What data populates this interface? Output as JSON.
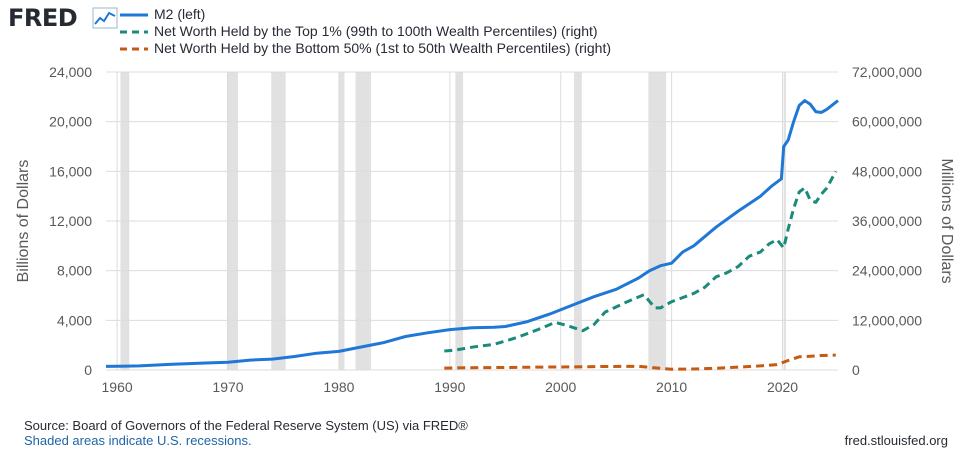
{
  "logo": {
    "text": "FRED",
    "icon": "chart-line-icon"
  },
  "chart_data": {
    "type": "line",
    "xlim": [
      1959,
      2025
    ],
    "x_ticks": [
      "1960",
      "1970",
      "1980",
      "1990",
      "2000",
      "2010",
      "2020"
    ],
    "left_axis": {
      "label": "Billions of Dollars",
      "ylim": [
        0,
        24000
      ],
      "ticks": [
        "0",
        "4,000",
        "8,000",
        "12,000",
        "16,000",
        "20,000",
        "24,000"
      ]
    },
    "right_axis": {
      "label": "Millions of Dollars",
      "ylim": [
        0,
        72000000
      ],
      "ticks": [
        "0",
        "12,000,000",
        "24,000,000",
        "36,000,000",
        "48,000,000",
        "60,000,000",
        "72,000,000"
      ]
    },
    "grid": true,
    "legend_position": "top-left",
    "recessions": [
      [
        1960.3,
        1961.1
      ],
      [
        1969.9,
        1970.9
      ],
      [
        1973.9,
        1975.2
      ],
      [
        1980.0,
        1980.5
      ],
      [
        1981.5,
        1982.9
      ],
      [
        1990.5,
        1991.2
      ],
      [
        2001.2,
        2001.9
      ],
      [
        2007.9,
        2009.5
      ],
      [
        2020.1,
        2020.3
      ]
    ],
    "series": [
      {
        "name": "M2 (left)",
        "axis": "left",
        "color": "#1f77d6",
        "style": "solid",
        "points": [
          [
            1959,
            290
          ],
          [
            1962,
            330
          ],
          [
            1965,
            460
          ],
          [
            1968,
            560
          ],
          [
            1970,
            630
          ],
          [
            1972,
            800
          ],
          [
            1974,
            880
          ],
          [
            1976,
            1090
          ],
          [
            1978,
            1350
          ],
          [
            1980,
            1500
          ],
          [
            1982,
            1850
          ],
          [
            1984,
            2200
          ],
          [
            1986,
            2700
          ],
          [
            1988,
            3000
          ],
          [
            1990,
            3250
          ],
          [
            1992,
            3400
          ],
          [
            1994,
            3450
          ],
          [
            1995,
            3500
          ],
          [
            1997,
            3900
          ],
          [
            1999,
            4500
          ],
          [
            2001,
            5200
          ],
          [
            2003,
            5900
          ],
          [
            2005,
            6500
          ],
          [
            2007,
            7400
          ],
          [
            2008,
            8000
          ],
          [
            2009,
            8400
          ],
          [
            2010,
            8600
          ],
          [
            2011,
            9500
          ],
          [
            2012,
            10000
          ],
          [
            2014,
            11500
          ],
          [
            2016,
            12800
          ],
          [
            2018,
            14000
          ],
          [
            2019,
            14800
          ],
          [
            2019.9,
            15400
          ],
          [
            2020.1,
            18000
          ],
          [
            2020.5,
            18500
          ],
          [
            2021,
            20000
          ],
          [
            2021.5,
            21300
          ],
          [
            2022,
            21700
          ],
          [
            2022.5,
            21400
          ],
          [
            2023,
            20800
          ],
          [
            2023.5,
            20750
          ],
          [
            2024,
            21000
          ],
          [
            2025,
            21700
          ]
        ]
      },
      {
        "name": "Net Worth Held by the Top 1% (99th to 100th Wealth Percentiles) (right)",
        "axis": "right",
        "color": "#1a8a7a",
        "style": "dashed",
        "points": [
          [
            1989.5,
            4600000
          ],
          [
            1990.5,
            4800000
          ],
          [
            1992,
            5500000
          ],
          [
            1994,
            6200000
          ],
          [
            1996,
            7800000
          ],
          [
            1998,
            9800000
          ],
          [
            1999.5,
            11500000
          ],
          [
            2000.5,
            10800000
          ],
          [
            2002,
            9500000
          ],
          [
            2003,
            11000000
          ],
          [
            2004,
            14000000
          ],
          [
            2006,
            16500000
          ],
          [
            2007.5,
            18200000
          ],
          [
            2008.5,
            15000000
          ],
          [
            2009,
            15000000
          ],
          [
            2010,
            16500000
          ],
          [
            2011,
            17500000
          ],
          [
            2012,
            18500000
          ],
          [
            2013,
            20000000
          ],
          [
            2014,
            22500000
          ],
          [
            2015,
            23500000
          ],
          [
            2016,
            25000000
          ],
          [
            2017,
            27500000
          ],
          [
            2018,
            28500000
          ],
          [
            2018.8,
            30500000
          ],
          [
            2019.5,
            31500000
          ],
          [
            2020.1,
            29500000
          ],
          [
            2020.5,
            34000000
          ],
          [
            2021,
            39000000
          ],
          [
            2021.5,
            43000000
          ],
          [
            2022,
            44000000
          ],
          [
            2022.5,
            41000000
          ],
          [
            2023,
            40500000
          ],
          [
            2023.5,
            42500000
          ],
          [
            2024,
            44000000
          ],
          [
            2024.8,
            48000000
          ]
        ]
      },
      {
        "name": "Net Worth Held by the Bottom 50% (1st to 50th Wealth Percentiles) (right)",
        "axis": "right",
        "color": "#c55a11",
        "style": "dashed",
        "points": [
          [
            1989.5,
            450000
          ],
          [
            1992,
            550000
          ],
          [
            1995,
            600000
          ],
          [
            1998,
            700000
          ],
          [
            2001,
            750000
          ],
          [
            2004,
            850000
          ],
          [
            2007,
            900000
          ],
          [
            2008.5,
            500000
          ],
          [
            2010,
            200000
          ],
          [
            2012,
            250000
          ],
          [
            2014,
            400000
          ],
          [
            2016,
            700000
          ],
          [
            2018,
            1000000
          ],
          [
            2019.5,
            1300000
          ],
          [
            2020.5,
            2300000
          ],
          [
            2021.5,
            3200000
          ],
          [
            2022.5,
            3300000
          ],
          [
            2023.5,
            3500000
          ],
          [
            2024.8,
            3600000
          ]
        ]
      }
    ]
  },
  "footer": {
    "source": "Source: Board of Governors of the Federal Reserve System (US) via FRED®",
    "note": "Shaded areas indicate U.S. recessions.",
    "site": "fred.stlouisfed.org"
  }
}
